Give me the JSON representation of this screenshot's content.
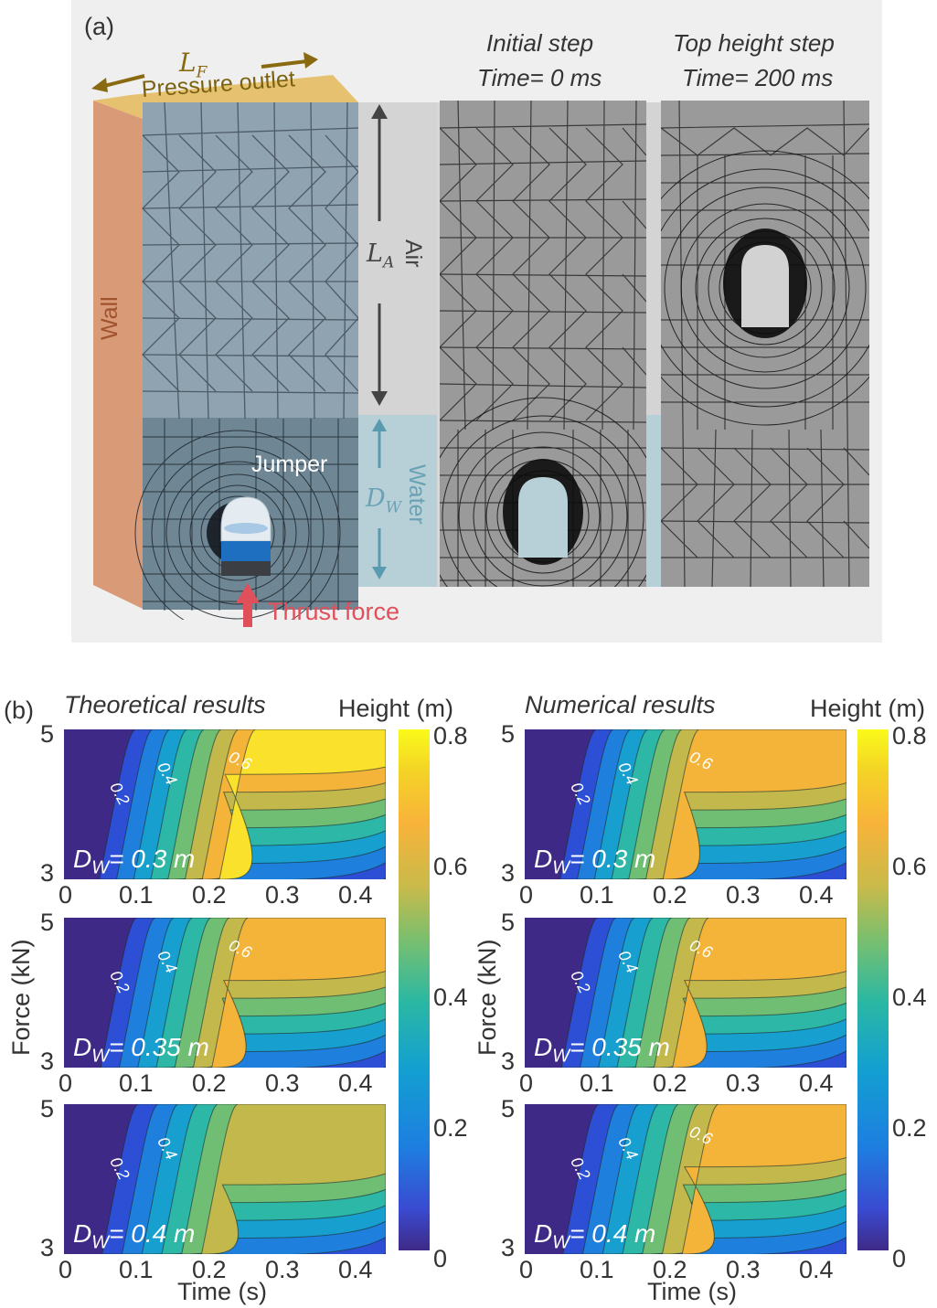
{
  "panel_a": {
    "label": "(a)",
    "lf_label": "L",
    "lf_sub": "F",
    "pressure_outlet": "Pressure outlet",
    "wall": "Wall",
    "jumper": "Jumper",
    "thrust_force": "Thrust force",
    "la_label": "L",
    "la_sub": "A",
    "air": "Air",
    "dw_label": "D",
    "dw_sub": "W",
    "water": "Water",
    "initial_step_line1": "Initial step",
    "initial_step_line2": "Time= 0 ms",
    "top_step_line1": "Top height step",
    "top_step_line2": "Time= 200 ms",
    "colors": {
      "wall": "#d99a78",
      "outlet": "#e6c270",
      "outlet_text": "#7a6210",
      "arrow_brown": "#8a6a10",
      "mesh_fluid": "#8fa3b0",
      "water_fill": "#b7d0d8",
      "thrust": "#e0505a",
      "mesh_gray": "#9a9a9a"
    }
  },
  "panel_b": {
    "label": "(b)",
    "left_title": "Theoretical results",
    "right_title": "Numerical results",
    "colorbar_title": "Height (m)",
    "ylabel": "Force (kN)",
    "xlabel": "Time (s)",
    "y_ticks": [
      "5",
      "3"
    ],
    "x_ticks": [
      "0",
      "0.1",
      "0.2",
      "0.3",
      "0.4"
    ],
    "colorbar_ticks": [
      "0.8",
      "0.6",
      "0.4",
      "0.2",
      "0"
    ],
    "rows": [
      {
        "dw_value": "= 0.3 m"
      },
      {
        "dw_value": "= 0.35 m"
      },
      {
        "dw_value": "= 0.4 m"
      }
    ],
    "contour_labels": [
      "0.2",
      "0.4",
      "0.6"
    ]
  },
  "chart_data": [
    {
      "type": "heatmap",
      "title": "Theoretical results",
      "xlabel": "Time (s)",
      "ylabel": "Force (kN)",
      "colorbar_label": "Height (m)",
      "xlim": [
        0,
        0.43
      ],
      "ylim": [
        3,
        5
      ],
      "clim": [
        0,
        0.8
      ],
      "x_ticks": [
        0,
        0.1,
        0.2,
        0.3,
        0.4
      ],
      "y_ticks": [
        3,
        5
      ],
      "contour_levels": [
        0.1,
        0.2,
        0.3,
        0.4,
        0.5,
        0.6,
        0.7,
        0.8
      ],
      "subplots": [
        {
          "label": "D_W = 0.3 m",
          "max_height": 0.8,
          "peak_region": {
            "time": 0.38,
            "force": 5
          }
        },
        {
          "label": "D_W = 0.35 m",
          "max_height": 0.65,
          "peak_region": {
            "time": 0.35,
            "force": 5
          }
        },
        {
          "label": "D_W = 0.4 m",
          "max_height": 0.55,
          "peak_region": {
            "time": 0.33,
            "force": 5
          }
        }
      ]
    },
    {
      "type": "heatmap",
      "title": "Numerical results",
      "xlabel": "Time (s)",
      "ylabel": "Force (kN)",
      "colorbar_label": "Height (m)",
      "xlim": [
        0,
        0.43
      ],
      "ylim": [
        3,
        5
      ],
      "clim": [
        0,
        0.8
      ],
      "x_ticks": [
        0,
        0.1,
        0.2,
        0.3,
        0.4
      ],
      "y_ticks": [
        3,
        5
      ],
      "contour_levels": [
        0.1,
        0.2,
        0.3,
        0.4,
        0.5,
        0.6,
        0.7
      ],
      "subplots": [
        {
          "label": "D_W = 0.3 m",
          "max_height": 0.72,
          "peak_region": {
            "time": 0.33,
            "force": 5
          }
        },
        {
          "label": "D_W = 0.35 m",
          "max_height": 0.68,
          "peak_region": {
            "time": 0.33,
            "force": 5
          }
        },
        {
          "label": "D_W = 0.4 m",
          "max_height": 0.65,
          "peak_region": {
            "time": 0.3,
            "force": 5
          }
        }
      ]
    }
  ]
}
